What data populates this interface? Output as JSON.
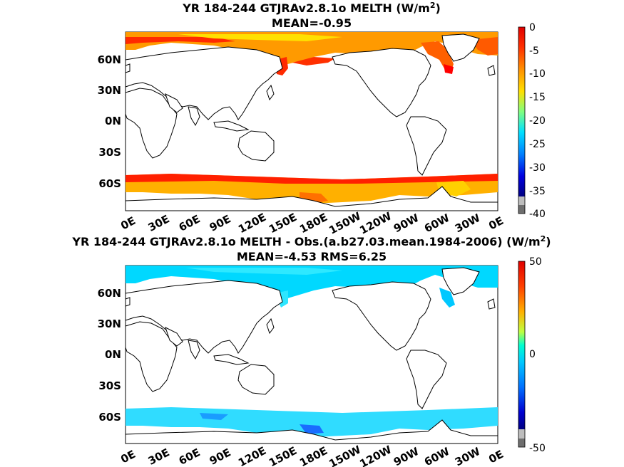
{
  "panels": [
    {
      "title_main": "YR 184-244 GTJRAv2.8.1o  MELTH (W/m",
      "title_sup": "2",
      "title_close": ")",
      "subtitle": "MEAN=-0.95",
      "colorbar_ticks": [
        "0",
        "-5",
        "-10",
        "-15",
        "-20",
        "-25",
        "-30",
        "-35",
        "-40"
      ],
      "colorbar_range": [
        -40,
        0
      ]
    },
    {
      "title_main": "YR 184-244 GTJRAv2.8.1o MELTH - Obs.(a.b27.03.mean.1984-2006) (W/m",
      "title_sup": "2",
      "title_close": ")",
      "subtitle": "MEAN=-4.53 RMS=6.25",
      "colorbar_ticks": [
        "50",
        "0",
        "-50"
      ],
      "colorbar_range": [
        -50,
        50
      ]
    }
  ],
  "lat_labels": [
    "60N",
    "30N",
    "0N",
    "30S",
    "60S"
  ],
  "lon_labels": [
    "0E",
    "30E",
    "60E",
    "90E",
    "120E",
    "150E",
    "180E",
    "150W",
    "120W",
    "90W",
    "60W",
    "30W",
    "0E"
  ],
  "colors": {
    "ice_melt_strong": "#ff1a00",
    "ice_melt_mid": "#ff8c00",
    "ice_melt_weak": "#ffd000",
    "diff_cyan": "#00d4ff",
    "diff_blue": "#1a7bff",
    "land_outline": "#000000"
  }
}
